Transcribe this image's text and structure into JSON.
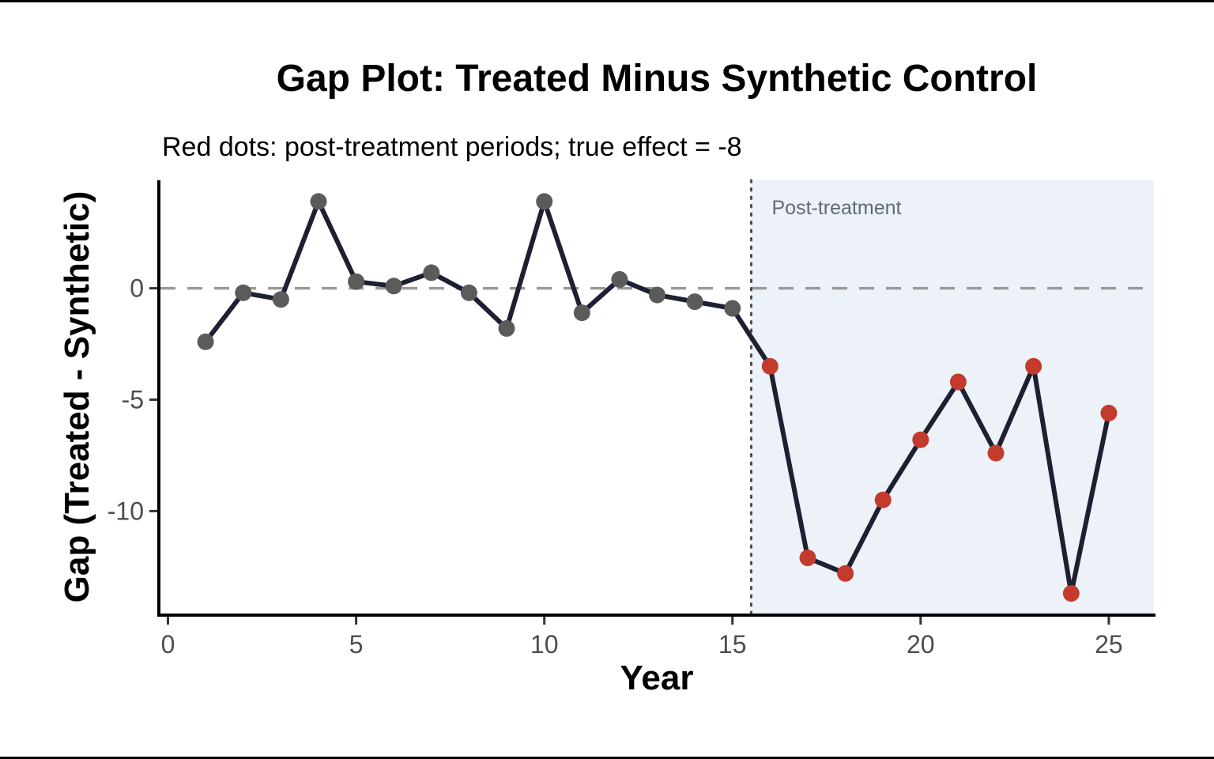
{
  "chart_data": {
    "type": "line",
    "title": "Gap Plot: Treated Minus Synthetic Control",
    "subtitle": "Red dots: post-treatment periods; true effect = -8",
    "xlabel": "Year",
    "ylabel": "Gap (Treated - Synthetic)",
    "annotation": "Post-treatment",
    "x": [
      1,
      2,
      3,
      4,
      5,
      6,
      7,
      8,
      9,
      10,
      11,
      12,
      13,
      14,
      15,
      16,
      17,
      18,
      19,
      20,
      21,
      22,
      23,
      24,
      25
    ],
    "gap": [
      -2.4,
      -0.2,
      -0.5,
      3.9,
      0.3,
      0.1,
      0.7,
      -0.2,
      -1.8,
      3.9,
      -1.1,
      0.4,
      -0.3,
      -0.6,
      -0.9,
      -3.5,
      -12.1,
      -12.8,
      -9.5,
      -6.8,
      -4.2,
      -7.4,
      -3.5,
      -13.7,
      -5.6
    ],
    "treatment_start_x": 15.5,
    "pre_period_years": [
      1,
      15
    ],
    "post_period_years": [
      16,
      25
    ],
    "true_effect": -8,
    "x_ticks": [
      0,
      5,
      10,
      15,
      20,
      25
    ],
    "y_ticks": [
      0,
      -5,
      -10
    ],
    "xlim": [
      -0.2,
      26.2
    ],
    "ylim": [
      -14.6,
      4.85
    ],
    "zero_line_y": 0,
    "grid": "off",
    "legend": "none",
    "colors": {
      "line": "#1d2033",
      "pre_dot": "#5b5b5b",
      "post_dot": "#c43b2d",
      "shade": "#edf2f8",
      "dashed_zero_line": "#9a9a9a",
      "dotted_treatment_line": "#4d4d4d",
      "axis": "#000000",
      "tick_text": "#4d4d4d",
      "annotation_text": "#5f6a72",
      "title_text": "#000000"
    }
  }
}
